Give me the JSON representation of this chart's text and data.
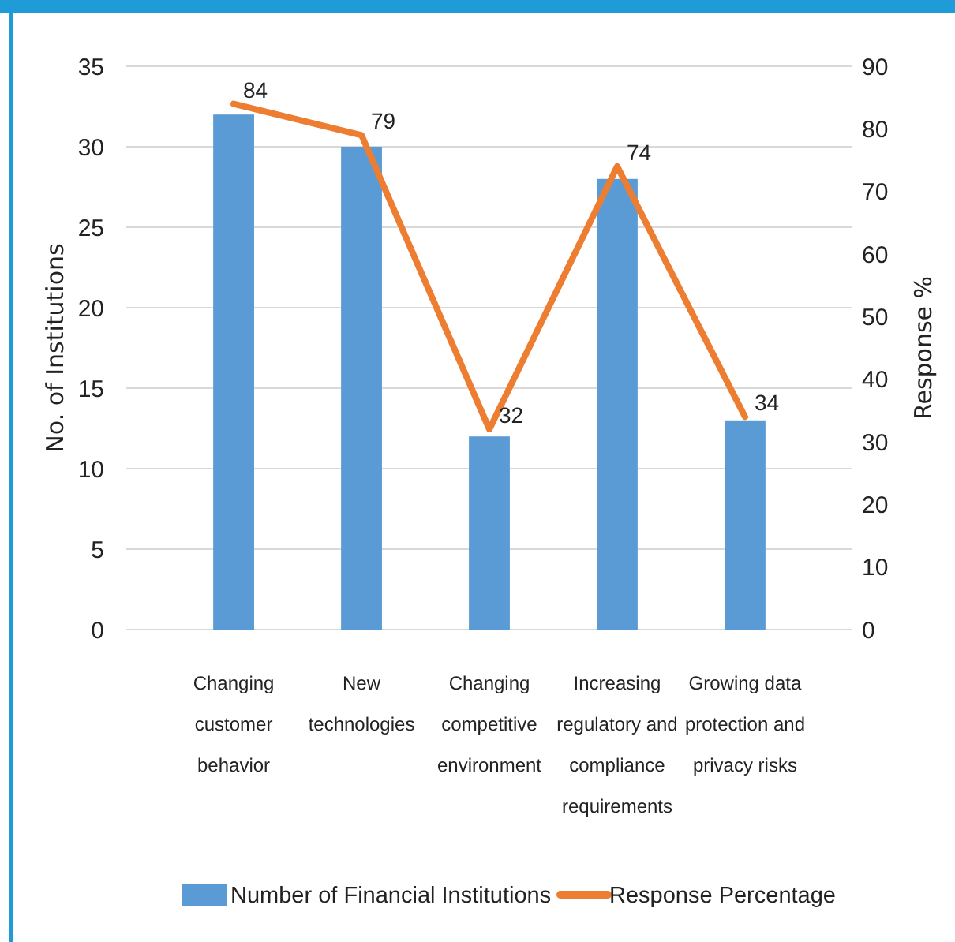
{
  "chart_data": {
    "type": "bar",
    "categories": [
      "Changing customer behavior",
      "New technologies",
      "Changing competitive environment",
      "Increasing regulatory and compliance requirements",
      "Growing data protection and privacy risks"
    ],
    "ylabel": "No. of Institutions",
    "y2label": "Response %",
    "ylim": [
      0,
      35
    ],
    "yticks": [
      0,
      5,
      10,
      15,
      20,
      25,
      30,
      35
    ],
    "y2lim": [
      0,
      90
    ],
    "y2ticks": [
      0,
      10,
      20,
      30,
      40,
      50,
      60,
      70,
      80,
      90
    ],
    "grid": "y",
    "legend": "bottom",
    "series": [
      {
        "name": "Number of Financial Institutions",
        "color": "#5b9bd5",
        "values": [
          32,
          30,
          12,
          28,
          13
        ]
      },
      {
        "name": "Response Percentage",
        "type": "line",
        "axis": "y2",
        "color": "#ed7d31",
        "values": [
          84,
          79,
          32,
          74,
          34
        ],
        "value_labels": [
          "84",
          "79",
          "32",
          "74",
          "34"
        ]
      }
    ]
  }
}
